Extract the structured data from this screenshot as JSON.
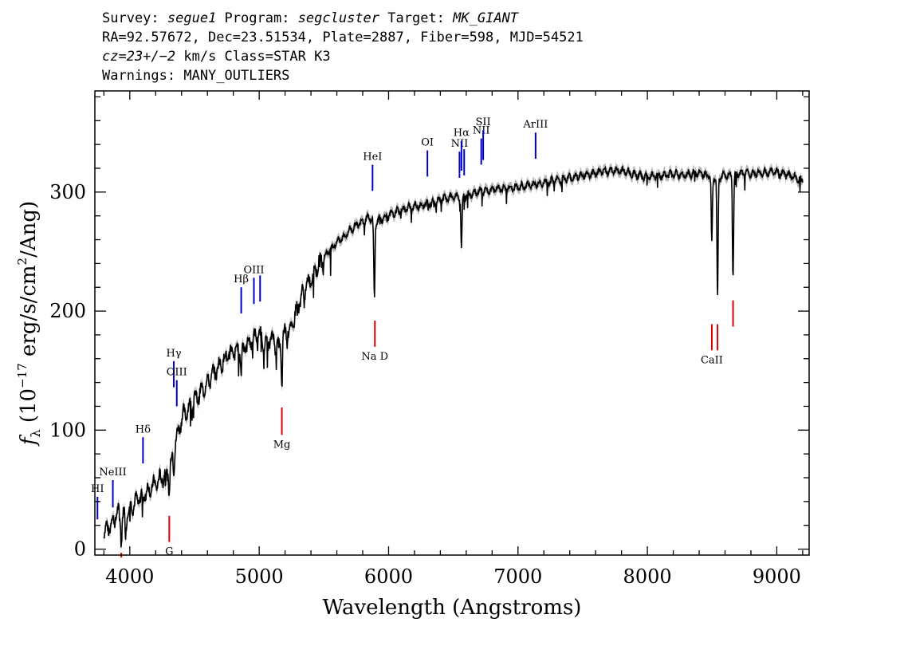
{
  "header": {
    "line1": {
      "survey_label": "Survey: ",
      "survey": "segue1",
      "program_label": " Program: ",
      "program": "segcluster",
      "target_label": " Target: ",
      "target": "MK_GIANT"
    },
    "line2": "RA=92.57672, Dec=23.51534, Plate=2887, Fiber=598, MJD=54521",
    "line3": {
      "cz": "cz=23+/−2",
      "rest": " km/s Class=STAR K3"
    },
    "line4": "Warnings: MANY_OUTLIERS"
  },
  "colors": {
    "spectrum": "#000000",
    "error_band": "#b4b4b4",
    "emission": "#0000cc",
    "absorption": "#dd0000"
  },
  "chart_data": {
    "type": "line",
    "xlabel": "Wavelength (Angstroms)",
    "ylabel_parts": {
      "f": "f",
      "sub": "λ",
      "open": " (10",
      "exp1": "−17",
      "mid": " erg/s/cm",
      "exp2": "2",
      "close": "/Ang)"
    },
    "xlim": [
      3730,
      9250
    ],
    "ylim": [
      -5,
      385
    ],
    "x_ticks": [
      4000,
      5000,
      6000,
      7000,
      8000,
      9000
    ],
    "x_tick_labels": [
      "4000",
      "5000",
      "6000",
      "7000",
      "8000",
      "9000"
    ],
    "y_ticks": [
      0,
      100,
      200,
      300
    ],
    "y_tick_labels": [
      "0",
      "100",
      "200",
      "300"
    ],
    "grid": false,
    "legend": "none",
    "spectrum": {
      "x": [
        3800,
        3850,
        3900,
        3950,
        4000,
        4050,
        4100,
        4150,
        4200,
        4250,
        4300,
        4350,
        4400,
        4450,
        4500,
        4550,
        4600,
        4650,
        4700,
        4750,
        4800,
        4850,
        4900,
        4950,
        5000,
        5050,
        5100,
        5150,
        5200,
        5250,
        5300,
        5350,
        5400,
        5450,
        5500,
        5550,
        5600,
        5650,
        5700,
        5750,
        5800,
        5850,
        5900,
        5950,
        6000,
        6100,
        6200,
        6300,
        6400,
        6500,
        6600,
        6700,
        6800,
        6900,
        7000,
        7100,
        7200,
        7300,
        7400,
        7500,
        7600,
        7700,
        7800,
        7900,
        8000,
        8100,
        8200,
        8300,
        8400,
        8500,
        8600,
        8700,
        8800,
        8900,
        9000,
        9100,
        9200
      ],
      "y": [
        15,
        20,
        30,
        28,
        35,
        40,
        45,
        50,
        55,
        60,
        65,
        88,
        110,
        118,
        125,
        132,
        140,
        148,
        155,
        162,
        165,
        168,
        172,
        176,
        180,
        172,
        178,
        168,
        182,
        185,
        205,
        218,
        228,
        238,
        245,
        252,
        258,
        262,
        268,
        272,
        276,
        278,
        275,
        278,
        280,
        285,
        288,
        290,
        294,
        296,
        297,
        300,
        302,
        303,
        304,
        306,
        308,
        310,
        312,
        314,
        316,
        318,
        318,
        315,
        313,
        314,
        315,
        315,
        316,
        312,
        314,
        315,
        316,
        316,
        317,
        314,
        310
      ]
    },
    "absorption_dips": [
      {
        "x": 3934,
        "depth": 20
      },
      {
        "x": 3968,
        "depth": 18
      },
      {
        "x": 4305,
        "depth": 18
      },
      {
        "x": 4340,
        "depth": 15
      },
      {
        "x": 4861,
        "depth": 20
      },
      {
        "x": 5175,
        "depth": 35
      },
      {
        "x": 5890,
        "depth": 65
      },
      {
        "x": 6563,
        "depth": 45
      },
      {
        "x": 8498,
        "depth": 55
      },
      {
        "x": 8542,
        "depth": 105
      },
      {
        "x": 8662,
        "depth": 85
      }
    ],
    "emission_lines": [
      {
        "label": "HI",
        "x": 3750,
        "y1": 25,
        "y2": 44
      },
      {
        "label": "NeIII",
        "x": 3869,
        "y1": 35,
        "y2": 58
      },
      {
        "label": "Hδ",
        "x": 4102,
        "y1": 72,
        "y2": 94
      },
      {
        "label": "Hγ",
        "x": 4340,
        "y1": 136,
        "y2": 158
      },
      {
        "label": "OIII",
        "x": 4363,
        "y1": 120,
        "y2": 142
      },
      {
        "label": "Hβ",
        "x": 4861,
        "y1": 198,
        "y2": 220
      },
      {
        "label": "OIII",
        "x": 4959,
        "y1": 206,
        "y2": 228
      },
      {
        "label": "",
        "x": 5007,
        "y1": 208,
        "y2": 230
      },
      {
        "label": "HeI",
        "x": 5876,
        "y1": 301,
        "y2": 323
      },
      {
        "label": "OI",
        "x": 6300,
        "y1": 313,
        "y2": 335
      },
      {
        "label": "NII",
        "x": 6548,
        "y1": 312,
        "y2": 334
      },
      {
        "label": "Hα",
        "x": 6563,
        "y1": 318,
        "y2": 343
      },
      {
        "label": "",
        "x": 6584,
        "y1": 314,
        "y2": 336
      },
      {
        "label": "NII",
        "x": 6716,
        "y1": 323,
        "y2": 345
      },
      {
        "label": "SII",
        "x": 6731,
        "y1": 327,
        "y2": 352
      },
      {
        "label": "ArIII",
        "x": 7136,
        "y1": 328,
        "y2": 350
      }
    ],
    "absorption_lines": [
      {
        "label": "",
        "x": 3934,
        "y1": -7,
        "y2": -3
      },
      {
        "label": "G",
        "x": 4305,
        "y1": 6,
        "y2": 28
      },
      {
        "label": "Mg",
        "x": 5175,
        "y1": 96,
        "y2": 119
      },
      {
        "label": "Na D",
        "x": 5894,
        "y1": 170,
        "y2": 192
      },
      {
        "label": "CaII",
        "x": 8498,
        "y1": 167,
        "y2": 189
      },
      {
        "label": "",
        "x": 8542,
        "y1": 167,
        "y2": 189
      },
      {
        "label": "",
        "x": 8662,
        "y1": 187,
        "y2": 209
      }
    ]
  }
}
